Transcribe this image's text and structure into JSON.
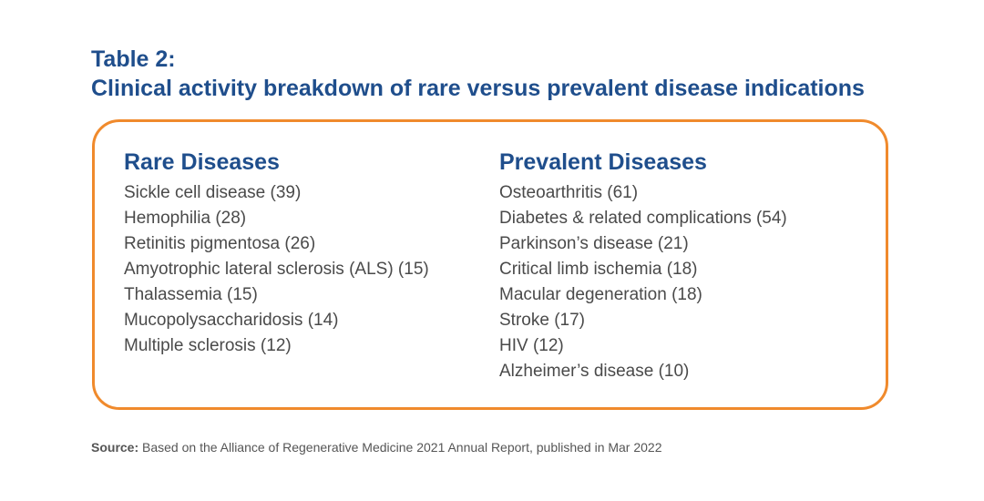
{
  "title": {
    "line1": "Table 2:",
    "line2": "Clinical activity breakdown of rare versus prevalent disease indications"
  },
  "columns": {
    "rare": {
      "heading": "Rare Diseases",
      "items": [
        "Sickle cell disease (39)",
        "Hemophilia (28)",
        "Retinitis pigmentosa (26)",
        "Amyotrophic lateral sclerosis (ALS) (15)",
        "Thalassemia (15)",
        "Mucopolysaccharidosis (14)",
        "Multiple sclerosis (12)"
      ]
    },
    "prevalent": {
      "heading": "Prevalent Diseases",
      "items": [
        "Osteoarthritis (61)",
        "Diabetes & related complications (54)",
        "Parkinson’s disease (21)",
        "Critical limb ischemia (18)",
        "Macular degeneration (18)",
        "Stroke (17)",
        "HIV (12)",
        "Alzheimer’s disease (10)"
      ]
    }
  },
  "source": {
    "label": "Source:",
    "text": " Based on the Alliance of Regenerative Medicine 2021 Annual Report, published in Mar 2022"
  },
  "colors": {
    "heading": "#1f4e8c",
    "border": "#f08a2c",
    "body_text": "#4a4a4a"
  }
}
